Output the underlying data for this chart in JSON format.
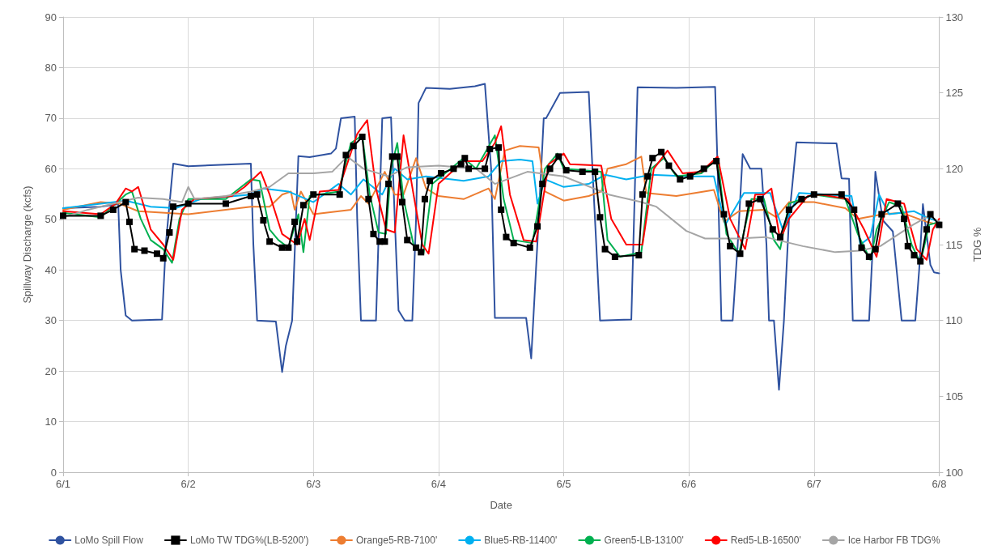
{
  "chart_data": {
    "type": "line",
    "xlabel": "Date",
    "ylabel": "Spillway Discharge (kcfs)",
    "y2label": "TDG %",
    "xlim": [
      "--06-01",
      "--06-08"
    ],
    "xticks": [
      {
        "value": "--06-01",
        "label": "6/1"
      },
      {
        "value": "--06-02",
        "label": "6/2"
      },
      {
        "value": "--06-03",
        "label": "6/3"
      },
      {
        "value": "--06-04",
        "label": "6/4"
      },
      {
        "value": "--06-05",
        "label": "6/5"
      },
      {
        "value": "--06-06",
        "label": "6/6"
      },
      {
        "value": "--06-07",
        "label": "6/7"
      },
      {
        "value": "--06-08",
        "label": "6/8"
      }
    ],
    "ylim": [
      0,
      90
    ],
    "yticks": [
      0,
      10,
      20,
      30,
      40,
      50,
      60,
      70,
      80,
      90
    ],
    "y2lim": [
      100,
      130
    ],
    "y2ticks": [
      100,
      105,
      110,
      115,
      120,
      125,
      130
    ],
    "grid": true,
    "legend": "bottom",
    "marker": "none",
    "series": [
      {
        "name": "LoMo Spill Flow",
        "color": "#2f52a0",
        "x": [
          "--06-01T00:00",
          "--06-01T07:12",
          "--06-01T10:34",
          "--06-01T11:02",
          "--06-01T12:00",
          "--06-01T13:12",
          "--06-01T18:58",
          "--06-01T19:41",
          "--06-01T21:07",
          "--06-02T00:00",
          "--06-02T07:12",
          "--06-02T12:00",
          "--06-02T12:29",
          "--06-02T13:12",
          "--06-02T16:48",
          "--06-02T18:00",
          "--06-02T18:43",
          "--06-02T19:55",
          "--06-02T21:07",
          "--06-02T23:17",
          "--06-03T03:22",
          "--06-03T04:19",
          "--06-03T05:17",
          "--06-03T07:55",
          "--06-03T08:24",
          "--06-03T09:07",
          "--06-03T12:00",
          "--06-03T13:12",
          "--06-03T14:53",
          "--06-03T15:36",
          "--06-03T16:19",
          "--06-03T17:31",
          "--06-03T18:58",
          "--06-03T19:41",
          "--06-03T20:10",
          "--06-03T21:36",
          "--06-04T02:10",
          "--06-04T06:58",
          "--06-04T08:53",
          "--06-04T10:05",
          "--06-04T10:48",
          "--06-04T16:48",
          "--06-04T17:46",
          "--06-04T19:12",
          "--06-04T20:10",
          "--06-04T20:38",
          "--06-04T23:17",
          "--06-05T04:48",
          "--06-05T05:31",
          "--06-05T06:58",
          "--06-05T12:58",
          "--06-05T14:10",
          "--06-05T21:36",
          "--06-06T05:02",
          "--06-06T05:31",
          "--06-06T06:14",
          "--06-06T08:24",
          "--06-06T09:22",
          "--06-06T10:19",
          "--06-06T11:46",
          "--06-06T13:55",
          "--06-06T14:53",
          "--06-06T15:22",
          "--06-06T16:19",
          "--06-06T17:17",
          "--06-06T18:14",
          "--06-06T19:12",
          "--06-06T20:38",
          "--06-07T04:19",
          "--06-07T05:17",
          "--06-07T06:43",
          "--06-07T07:26",
          "--06-07T10:34",
          "--06-07T11:17",
          "--06-07T11:46",
          "--06-07T13:12",
          "--06-07T15:07",
          "--06-07T16:48",
          "--06-07T19:26",
          "--06-07T20:10",
          "--06-07T20:53",
          "--06-07T21:36",
          "--06-07T22:19",
          "--06-07T23:02",
          "--06-08T00:00"
        ],
        "values": [
          52.2,
          52.5,
          53,
          40,
          31,
          30,
          30.2,
          45,
          61,
          60.5,
          60.8,
          61,
          45,
          30,
          29.8,
          19.8,
          25,
          30,
          62.5,
          62.3,
          63,
          64,
          70,
          70.3,
          50,
          30,
          30,
          70,
          70.2,
          50,
          32,
          30,
          30,
          50,
          73,
          76,
          75.8,
          76.3,
          76.8,
          60,
          30.5,
          30.5,
          22.5,
          50,
          70,
          70,
          75,
          75.2,
          60,
          30,
          30.2,
          76.1,
          76,
          76.2,
          60,
          30,
          30,
          45,
          62.9,
          60,
          60,
          45,
          30,
          30,
          16.3,
          30,
          50,
          65.2,
          65,
          58.1,
          58,
          30,
          30,
          45,
          59.4,
          49.8,
          47.6,
          30,
          30,
          40,
          53,
          47,
          41,
          39.5,
          39.3
        ]
      },
      {
        "name": "LoMo TW TDG%(LB-5200')",
        "color": "#000000",
        "axis": "y2",
        "marker": "square",
        "x": [
          "--06-01T00:00",
          "--06-01T07:12",
          "--06-01T09:36",
          "--06-01T12:00",
          "--06-01T12:43",
          "--06-01T13:41",
          "--06-01T15:36",
          "--06-01T18:00",
          "--06-01T19:12",
          "--06-01T20:24",
          "--06-01T21:07",
          "--06-02T00:00",
          "--06-02T07:12",
          "--06-02T12:00",
          "--06-02T13:12",
          "--06-02T14:24",
          "--06-02T15:36",
          "--06-02T18:00",
          "--06-02T19:12",
          "--06-02T20:24",
          "--06-02T20:53",
          "--06-02T22:05",
          "--06-03T00:00",
          "--06-03T05:02",
          "--06-03T06:14",
          "--06-03T07:41",
          "--06-03T09:22",
          "--06-03T10:34",
          "--06-03T11:31",
          "--06-03T12:43",
          "--06-03T13:41",
          "--06-03T14:24",
          "--06-03T15:07",
          "--06-03T16:05",
          "--06-03T17:02",
          "--06-03T18:00",
          "--06-03T19:41",
          "--06-03T20:38",
          "--06-03T21:22",
          "--06-03T22:19",
          "--06-04T00:29",
          "--06-04T02:53",
          "--06-04T04:19",
          "--06-04T05:02",
          "--06-04T05:46",
          "--06-04T08:53",
          "--06-04T09:50",
          "--06-04T11:31",
          "--06-04T12:00",
          "--06-04T12:58",
          "--06-04T14:24",
          "--06-04T17:31",
          "--06-04T18:58",
          "--06-04T19:55",
          "--06-04T21:22",
          "--06-04T23:02",
          "--06-05T00:29",
          "--06-05T03:36",
          "--06-05T06:00",
          "--06-05T06:58",
          "--06-05T07:55",
          "--06-05T09:50",
          "--06-05T14:24",
          "--06-05T15:07",
          "--06-05T16:05",
          "--06-05T17:02",
          "--06-05T18:43",
          "--06-05T20:10",
          "--06-05T22:19",
          "--06-06T00:14",
          "--06-06T02:53",
          "--06-06T05:17",
          "--06-06T06:43",
          "--06-06T07:55",
          "--06-06T09:50",
          "--06-06T11:31",
          "--06-06T13:41",
          "--06-06T16:05",
          "--06-06T17:31",
          "--06-06T19:12",
          "--06-06T21:36",
          "--06-07T00:00",
          "--06-07T05:17",
          "--06-07T07:41",
          "--06-07T09:07",
          "--06-07T10:34",
          "--06-07T11:46",
          "--06-07T12:58",
          "--06-07T16:05",
          "--06-07T17:17",
          "--06-07T18:00",
          "--06-07T19:12",
          "--06-07T20:24",
          "--06-07T21:36",
          "--06-07T22:19",
          "--06-08T00:00"
        ],
        "values": [
          116.9,
          116.9,
          117.3,
          117.8,
          116.5,
          114.7,
          114.6,
          114.4,
          114.1,
          115.8,
          117.5,
          117.7,
          117.7,
          118.2,
          118.3,
          116.6,
          115.2,
          114.8,
          114.8,
          116.5,
          115.2,
          117.6,
          118.3,
          118.3,
          120.9,
          121.5,
          122.1,
          118.0,
          115.7,
          115.2,
          115.2,
          119.0,
          120.8,
          120.8,
          117.8,
          115.3,
          114.8,
          114.5,
          118.0,
          119.2,
          119.7,
          120.0,
          120.3,
          120.7,
          120.0,
          120.0,
          121.3,
          121.4,
          117.3,
          115.5,
          115.1,
          114.8,
          116.2,
          119.0,
          120.0,
          120.8,
          119.9,
          119.8,
          119.8,
          116.8,
          114.7,
          114.2,
          114.3,
          118.3,
          119.5,
          120.7,
          121.1,
          120.2,
          119.3,
          119.5,
          120.0,
          120.5,
          117.0,
          114.9,
          114.4,
          117.7,
          118.0,
          116.0,
          115.5,
          117.3,
          118.0,
          118.3,
          118.3,
          117.3,
          114.8,
          114.2,
          114.7,
          117.0,
          117.7,
          116.7,
          114.9,
          114.3,
          113.9,
          116.0,
          117.0,
          116.3
        ]
      },
      {
        "name": "Orange5-RB-7100'",
        "color": "#ed7d31",
        "axis": "y2",
        "x": [
          "--06-01T00:00",
          "--06-01T07:12",
          "--06-01T10:48",
          "--06-01T14:24",
          "--06-02T00:00",
          "--06-02T12:00",
          "--06-02T15:36",
          "--06-02T18:00",
          "--06-02T19:41",
          "--06-02T20:24",
          "--06-02T21:36",
          "--06-03T00:00",
          "--06-03T07:12",
          "--06-03T09:07",
          "--06-03T10:34",
          "--06-03T13:41",
          "--06-03T15:36",
          "--06-03T17:17",
          "--06-03T19:41",
          "--06-03T21:36",
          "--06-04T00:00",
          "--06-04T04:48",
          "--06-04T09:36",
          "--06-04T10:48",
          "--06-04T12:43",
          "--06-04T15:36",
          "--06-04T19:12",
          "--06-04T20:24",
          "--06-05T00:00",
          "--06-05T04:48",
          "--06-05T07:12",
          "--06-05T08:24",
          "--06-05T12:00",
          "--06-05T14:53",
          "--06-05T15:50",
          "--06-05T21:36",
          "--06-06T04:48",
          "--06-06T06:43",
          "--06-06T09:36",
          "--06-06T14:24",
          "--06-06T16:48",
          "--06-06T19:12",
          "--06-07T00:00",
          "--06-07T06:00",
          "--06-07T08:24",
          "--06-07T13:12",
          "--06-07T16:48",
          "--06-07T21:36",
          "--06-08T00:00"
        ],
        "values": [
          117.3,
          117.8,
          117.7,
          117.2,
          117.0,
          117.5,
          117.5,
          118.3,
          118.5,
          117.3,
          118.5,
          117.0,
          117.3,
          118.2,
          117.7,
          119.8,
          118.3,
          118.3,
          120.7,
          118.7,
          118.2,
          118.0,
          118.7,
          118.0,
          121.2,
          121.5,
          121.4,
          118.5,
          117.9,
          118.2,
          118.5,
          120.0,
          120.3,
          120.8,
          118.4,
          118.2,
          118.6,
          116.5,
          117.2,
          117.3,
          116.8,
          117.8,
          117.8,
          117.4,
          116.7,
          117.0,
          117.1,
          116.5,
          116.3
        ]
      },
      {
        "name": "Blue5-RB-11400'",
        "color": "#00b0f0",
        "axis": "y2",
        "x": [
          "--06-01T00:00",
          "--06-01T07:12",
          "--06-01T12:00",
          "--06-01T16:48",
          "--06-01T21:36",
          "--06-02T02:24",
          "--06-02T12:00",
          "--06-02T14:24",
          "--06-02T19:12",
          "--06-03T00:00",
          "--06-03T04:48",
          "--06-03T07:12",
          "--06-03T09:36",
          "--06-03T13:12",
          "--06-03T15:36",
          "--06-03T18:00",
          "--06-03T21:36",
          "--06-04T04:48",
          "--06-04T09:36",
          "--06-04T12:00",
          "--06-04T15:36",
          "--06-04T18:00",
          "--06-04T18:58",
          "--06-04T20:24",
          "--06-05T00:00",
          "--06-05T04:48",
          "--06-05T07:55",
          "--06-05T12:00",
          "--06-05T16:48",
          "--06-06T00:00",
          "--06-06T04:48",
          "--06-06T06:58",
          "--06-06T10:34",
          "--06-06T15:36",
          "--06-06T18:00",
          "--06-06T21:07",
          "--06-07T07:12",
          "--06-07T08:53",
          "--06-07T10:48",
          "--06-07T12:29",
          "--06-07T14:24",
          "--06-07T19:12",
          "--06-07T21:36",
          "--06-08T00:00"
        ],
        "values": [
          117.4,
          117.7,
          117.9,
          117.5,
          117.4,
          118.0,
          118.3,
          118.7,
          118.5,
          117.8,
          119.0,
          118.3,
          119.3,
          118.3,
          120.0,
          119.3,
          119.5,
          119.2,
          119.5,
          120.5,
          120.6,
          120.5,
          117.7,
          119.3,
          118.8,
          119.0,
          119.6,
          119.3,
          119.6,
          119.5,
          119.5,
          116.3,
          118.4,
          118.4,
          116.0,
          118.4,
          118.2,
          115.0,
          115.5,
          118.3,
          117.0,
          117.2,
          116.8,
          116.5
        ]
      },
      {
        "name": "Green5-LB-13100'",
        "color": "#00b050",
        "axis": "y2",
        "x": [
          "--06-01T00:00",
          "--06-01T07:12",
          "--06-01T12:00",
          "--06-01T13:12",
          "--06-01T14:53",
          "--06-01T16:48",
          "--06-01T19:12",
          "--06-01T20:53",
          "--06-01T22:19",
          "--06-02T00:00",
          "--06-02T07:12",
          "--06-02T12:00",
          "--06-02T13:41",
          "--06-02T15:36",
          "--06-02T17:17",
          "--06-02T19:12",
          "--06-02T21:07",
          "--06-02T22:05",
          "--06-02T23:17",
          "--06-03T04:48",
          "--06-03T07:12",
          "--06-03T09:22",
          "--06-03T10:48",
          "--06-03T12:29",
          "--06-03T13:55",
          "--06-03T14:53",
          "--06-03T16:05",
          "--06-03T17:17",
          "--06-03T19:12",
          "--06-03T21:07",
          "--06-03T22:48",
          "--06-04T04:48",
          "--06-04T07:12",
          "--06-04T10:48",
          "--06-04T12:29",
          "--06-04T14:24",
          "--06-04T18:00",
          "--06-04T20:24",
          "--06-04T22:48",
          "--06-05T00:00",
          "--06-05T07:12",
          "--06-05T08:24",
          "--06-05T10:48",
          "--06-05T14:53",
          "--06-05T16:48",
          "--06-05T19:12",
          "--06-05T21:36",
          "--06-06T02:24",
          "--06-06T05:31",
          "--06-06T07:12",
          "--06-06T09:36",
          "--06-06T12:00",
          "--06-06T14:24",
          "--06-06T16:19",
          "--06-06T17:31",
          "--06-06T19:12",
          "--06-07T00:00",
          "--06-07T06:00",
          "--06-07T08:24",
          "--06-07T10:48",
          "--06-07T12:00",
          "--06-07T14:24",
          "--06-07T16:48",
          "--06-07T18:43",
          "--06-07T20:24",
          "--06-07T22:05",
          "--06-08T00:00"
        ],
        "values": [
          117.1,
          116.8,
          118.3,
          118.5,
          116.7,
          115.3,
          114.7,
          113.8,
          116.7,
          118.0,
          118.0,
          119.3,
          119.2,
          116.0,
          115.3,
          114.8,
          117.0,
          114.5,
          118.2,
          118.5,
          121.7,
          122.2,
          118.3,
          115.8,
          115.7,
          120.0,
          121.7,
          118.0,
          115.0,
          114.4,
          119.0,
          120.7,
          120.0,
          122.2,
          118.0,
          115.3,
          115.1,
          120.0,
          121.0,
          120.0,
          119.8,
          115.3,
          114.2,
          114.5,
          120.0,
          120.7,
          119.5,
          119.7,
          120.7,
          115.7,
          114.4,
          118.0,
          118.0,
          115.3,
          114.7,
          117.7,
          118.3,
          118.0,
          115.7,
          114.0,
          116.0,
          117.8,
          117.5,
          115.0,
          113.8,
          116.3,
          116.5
        ]
      },
      {
        "name": "Red5-LB-16500'",
        "color": "#ff0000",
        "axis": "y2",
        "x": [
          "--06-01T00:00",
          "--06-01T07:12",
          "--06-01T10:05",
          "--06-01T12:00",
          "--06-01T13:12",
          "--06-01T14:24",
          "--06-01T16:48",
          "--06-01T19:12",
          "--06-01T21:07",
          "--06-01T22:48",
          "--06-02T01:12",
          "--06-02T08:24",
          "--06-02T10:48",
          "--06-02T13:55",
          "--06-02T15:36",
          "--06-02T18:00",
          "--06-02T20:53",
          "--06-02T22:19",
          "--06-02T23:17",
          "--06-03T01:12",
          "--06-03T04:48",
          "--06-03T08:24",
          "--06-03T10:19",
          "--06-03T12:00",
          "--06-03T13:55",
          "--06-03T15:36",
          "--06-03T17:17",
          "--06-03T19:12",
          "--06-03T20:53",
          "--06-03T22:05",
          "--06-04T00:00",
          "--06-04T04:48",
          "--06-04T08:24",
          "--06-04T10:48",
          "--06-04T12:00",
          "--06-04T13:41",
          "--06-04T16:19",
          "--06-04T18:43",
          "--06-04T21:07",
          "--06-05T00:00",
          "--06-05T01:12",
          "--06-05T07:12",
          "--06-05T09:07",
          "--06-05T12:00",
          "--06-05T15:07",
          "--06-05T17:17",
          "--06-05T19:55",
          "--06-05T22:48",
          "--06-06T02:24",
          "--06-06T05:31",
          "--06-06T07:55",
          "--06-06T10:48",
          "--06-06T12:43",
          "--06-06T14:24",
          "--06-06T15:50",
          "--06-06T17:31",
          "--06-06T19:12",
          "--06-06T22:48",
          "--06-07T01:12",
          "--06-07T06:29",
          "--06-07T09:36",
          "--06-07T12:00",
          "--06-07T13:55",
          "--06-07T17:17",
          "--06-07T19:41",
          "--06-07T21:36",
          "--06-07T22:48",
          "--06-08T00:00"
        ],
        "values": [
          117.2,
          117.0,
          117.7,
          118.7,
          118.5,
          118.8,
          116.0,
          115.0,
          114.0,
          117.3,
          118.0,
          118.2,
          118.8,
          119.8,
          118.3,
          115.7,
          115.0,
          116.7,
          115.3,
          118.5,
          118.6,
          122.3,
          123.2,
          118.7,
          116.0,
          115.8,
          122.2,
          118.3,
          115.0,
          114.4,
          119.0,
          120.5,
          120.5,
          121.7,
          122.8,
          118.3,
          115.3,
          115.2,
          120.3,
          121.0,
          120.3,
          120.2,
          116.7,
          115.0,
          115.0,
          120.0,
          121.2,
          119.7,
          119.8,
          120.8,
          116.7,
          114.7,
          118.3,
          118.3,
          118.7,
          115.3,
          116.7,
          118.2,
          118.3,
          118.0,
          116.0,
          114.2,
          118.0,
          117.7,
          114.7,
          114.0,
          116.0,
          116.7
        ]
      },
      {
        "name": "Ice Harbor FB TDG%",
        "color": "#a5a5a5",
        "axis": "y2",
        "x": [
          "--06-01T00:00",
          "--06-01T04:48",
          "--06-01T09:36",
          "--06-01T14:24",
          "--06-01T19:12",
          "--06-01T22:48",
          "--06-02T00:00",
          "--06-02T01:12",
          "--06-02T07:12",
          "--06-02T12:00",
          "--06-02T15:36",
          "--06-02T19:12",
          "--06-03T00:00",
          "--06-03T03:36",
          "--06-03T06:29",
          "--06-03T09:36",
          "--06-03T14:24",
          "--06-03T18:00",
          "--06-04T00:00",
          "--06-04T07:12",
          "--06-04T10:48",
          "--06-04T17:02",
          "--06-05T00:00",
          "--06-05T08:38",
          "--06-05T14:53",
          "--06-05T17:46",
          "--06-05T23:31",
          "--06-06T03:07",
          "--06-06T09:22",
          "--06-06T14:38",
          "--06-06T21:50",
          "--06-07T04:05",
          "--06-07T08:53",
          "--06-07T12:43",
          "--06-07T18:58",
          "--06-07T22:05",
          "--06-08T00:00"
        ],
        "values": [
          116.8,
          117.3,
          117.7,
          118.1,
          118.0,
          117.8,
          118.8,
          118.0,
          118.2,
          118.5,
          118.8,
          119.7,
          119.7,
          119.8,
          120.8,
          120.0,
          119.5,
          120.1,
          120.2,
          120.0,
          119.0,
          119.8,
          119.5,
          118.3,
          117.8,
          117.5,
          115.9,
          115.4,
          115.4,
          115.5,
          114.9,
          114.5,
          114.6,
          114.9,
          116.3,
          116.9,
          116.5
        ]
      }
    ]
  }
}
